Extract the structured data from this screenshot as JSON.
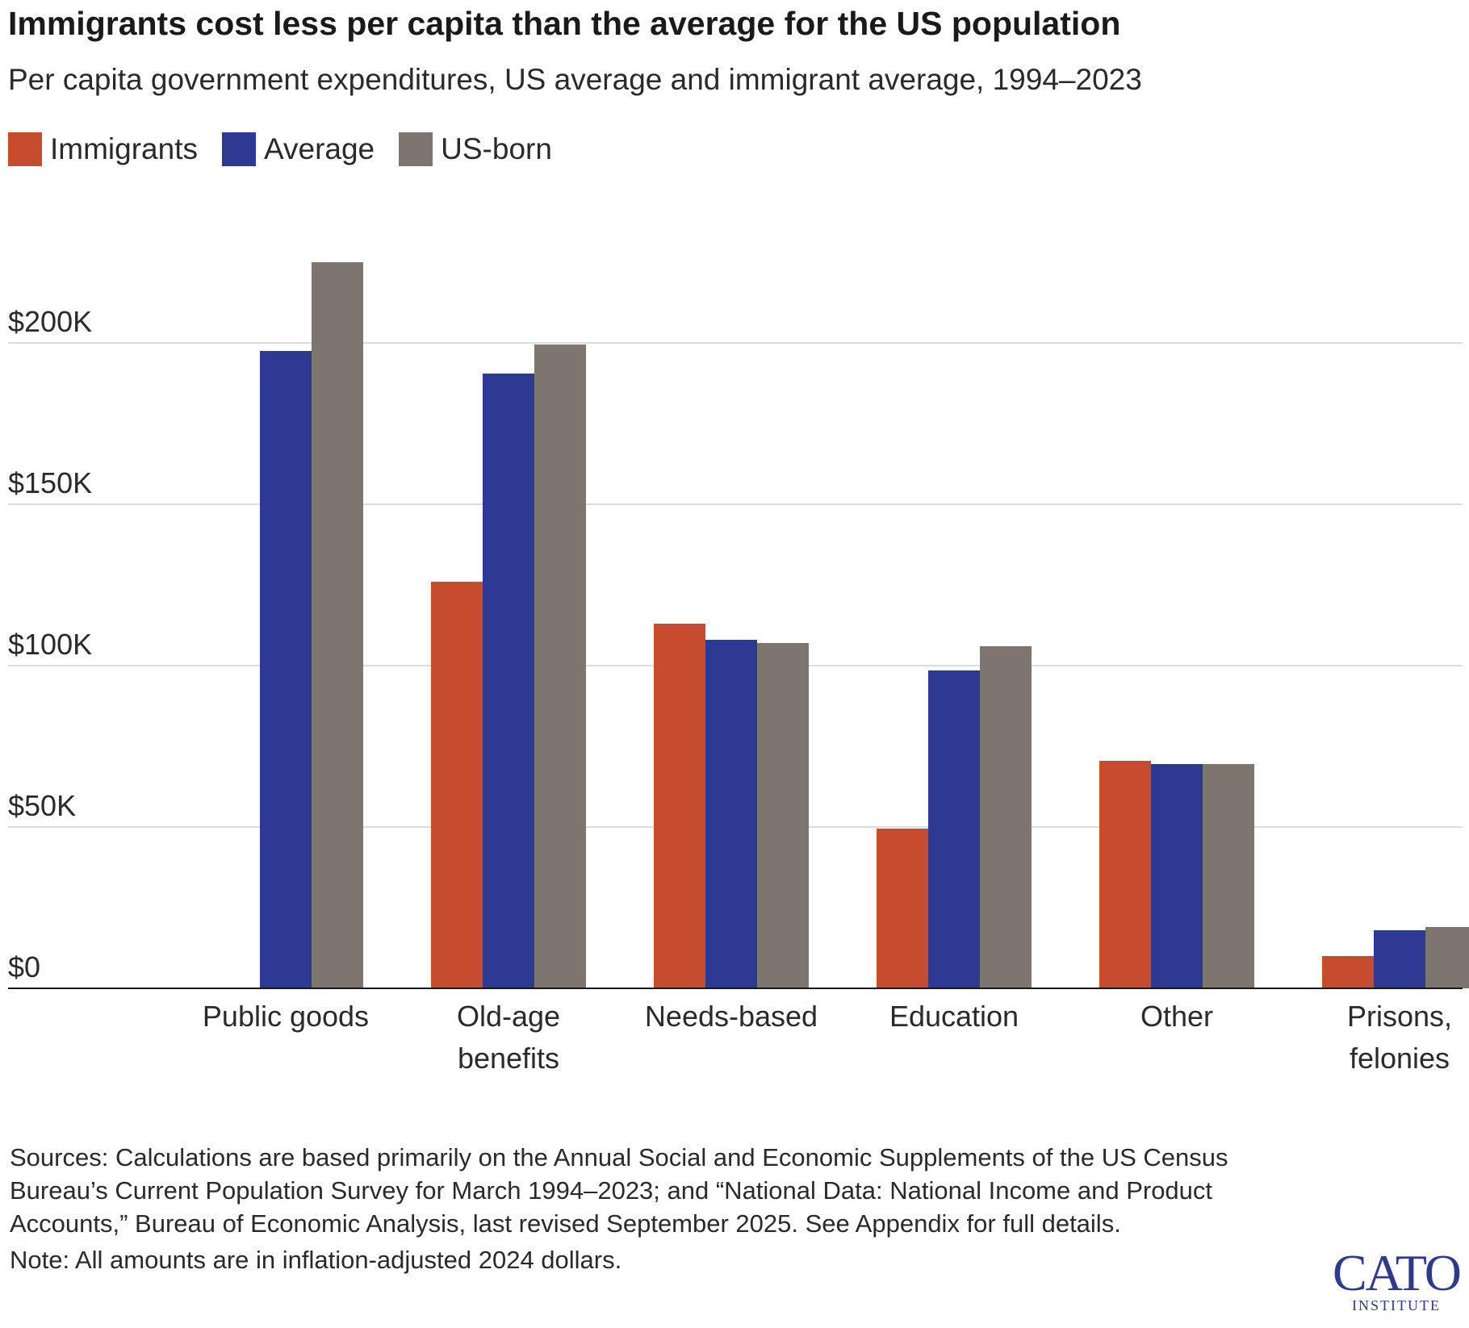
{
  "title": "Immigrants cost less per capita than the average for the US population",
  "subtitle": "Per capita government expenditures, US average and immigrant average, 1994–2023",
  "legend": [
    {
      "label": "Immigrants",
      "color": "#c64b2f"
    },
    {
      "label": "Average",
      "color": "#2d3a93"
    },
    {
      "label": "US-born",
      "color": "#7d756e"
    }
  ],
  "chart_data": {
    "type": "bar",
    "title": "Immigrants cost less per capita than the average for the US population",
    "subtitle": "Per capita government expenditures, US average and immigrant average, 1994–2023",
    "categories": [
      [
        "Public goods"
      ],
      [
        "Old-age",
        "benefits"
      ],
      [
        "Needs-based"
      ],
      [
        "Education"
      ],
      [
        "Other"
      ],
      [
        "Prisons,",
        "felonies"
      ]
    ],
    "series": [
      {
        "name": "Immigrants",
        "color": "#c64b2f",
        "values": [
          0,
          126000,
          113000,
          49500,
          70500,
          10000
        ]
      },
      {
        "name": "Average",
        "color": "#2d3a93",
        "values": [
          197500,
          190500,
          108000,
          98500,
          69500,
          18000
        ]
      },
      {
        "name": "US-born",
        "color": "#7d756e",
        "values": [
          225000,
          199500,
          107000,
          106000,
          69500,
          19000
        ]
      }
    ],
    "y_ticks": [
      0,
      50000,
      100000,
      150000,
      200000
    ],
    "y_tick_labels": [
      "$0",
      "$50K",
      "$100K",
      "$150K",
      "$200K"
    ],
    "ylim": [
      0,
      225000
    ],
    "xlabel": "",
    "ylabel": "",
    "grid": true,
    "legend_position": "top-left"
  },
  "footer": {
    "sources": "Sources: Calculations are based primarily on the Annual Social and Economic Supplements of the US Census Bureau’s Current Population Survey for March 1994–2023; and “National Data: National Income and Product Accounts,” Bureau of Economic Analysis, last revised September 2025. See Appendix for full details.",
    "note": "Note: All amounts are in inflation-adjusted 2024 dollars."
  },
  "logo": {
    "main": "CATO",
    "sub": "INSTITUTE"
  }
}
